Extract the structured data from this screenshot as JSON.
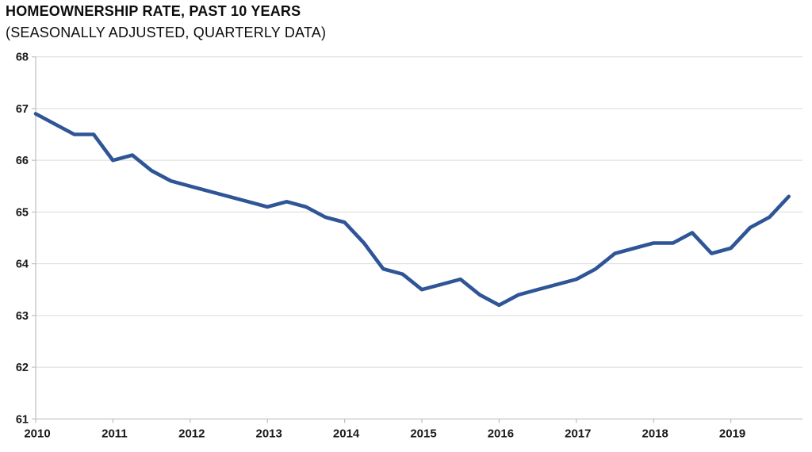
{
  "header": {
    "title": "HOMEOWNERSHIP RATE, PAST 10 YEARS",
    "subtitle": "(SEASONALLY ADJUSTED, QUARTERLY DATA)"
  },
  "chart_data": {
    "type": "line",
    "title": "HOMEOWNERSHIP RATE, PAST 10 YEARS",
    "subtitle": "(SEASONALLY ADJUSTED, QUARTERLY DATA)",
    "categories": [
      "2010 Q1",
      "2010 Q2",
      "2010 Q3",
      "2010 Q4",
      "2011 Q1",
      "2011 Q2",
      "2011 Q3",
      "2011 Q4",
      "2012 Q1",
      "2012 Q2",
      "2012 Q3",
      "2012 Q4",
      "2013 Q1",
      "2013 Q2",
      "2013 Q3",
      "2013 Q4",
      "2014 Q1",
      "2014 Q2",
      "2014 Q3",
      "2014 Q4",
      "2015 Q1",
      "2015 Q2",
      "2015 Q3",
      "2015 Q4",
      "2016 Q1",
      "2016 Q2",
      "2016 Q3",
      "2016 Q4",
      "2017 Q1",
      "2017 Q2",
      "2017 Q3",
      "2017 Q4",
      "2018 Q1",
      "2018 Q2",
      "2018 Q3",
      "2018 Q4",
      "2019 Q1",
      "2019 Q2",
      "2019 Q3",
      "2019 Q4"
    ],
    "series": [
      {
        "name": "Homeownership rate (%)",
        "color": "#2F5597",
        "values": [
          66.9,
          66.7,
          66.5,
          66.5,
          66.0,
          66.1,
          65.8,
          65.6,
          65.5,
          65.4,
          65.3,
          65.2,
          65.1,
          65.2,
          65.1,
          64.9,
          64.8,
          64.4,
          63.9,
          63.8,
          63.5,
          63.6,
          63.7,
          63.4,
          63.2,
          63.4,
          63.5,
          63.6,
          63.7,
          63.9,
          64.2,
          64.3,
          64.4,
          64.4,
          64.6,
          64.2,
          64.3,
          64.7,
          64.9,
          65.3
        ]
      }
    ],
    "xlabel": "",
    "ylabel": "",
    "x_tick_labels": [
      "2010",
      "2011",
      "2012",
      "2013",
      "2014",
      "2015",
      "2016",
      "2017",
      "2018",
      "2019"
    ],
    "y_tick_labels": [
      "61",
      "62",
      "63",
      "64",
      "65",
      "66",
      "67",
      "68"
    ],
    "ylim": [
      61,
      68
    ],
    "grid": true,
    "legend_position": "none"
  },
  "colors": {
    "line": "#2F5597",
    "gridline": "#D9D9D9",
    "axis": "#BFBFBF",
    "tick_text": "#1A1A1A",
    "title_text": "#0D0D0D",
    "background": "#FFFFFF"
  }
}
